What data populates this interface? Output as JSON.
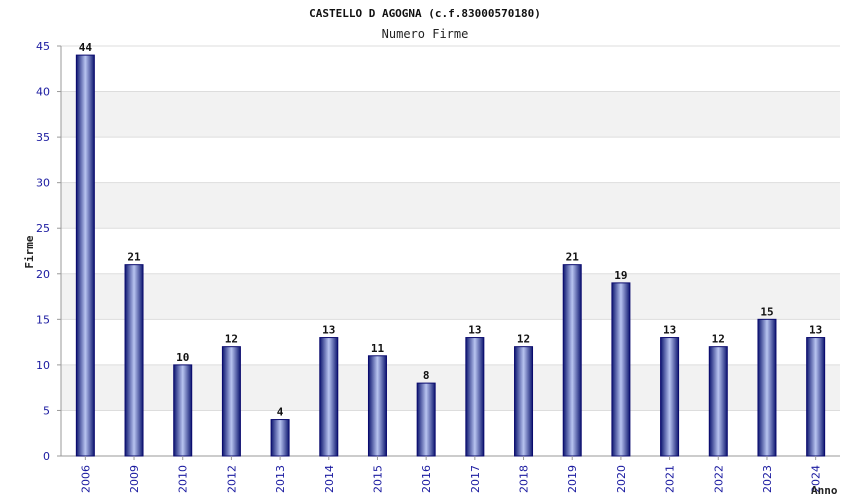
{
  "chart_data": {
    "type": "bar",
    "title": "CASTELLO D AGOGNA (c.f.83000570180)",
    "subtitle": "Numero Firme",
    "xlabel": "Anno",
    "ylabel": "Firme",
    "categories": [
      "2006",
      "2009",
      "2010",
      "2012",
      "2013",
      "2014",
      "2015",
      "2016",
      "2017",
      "2018",
      "2019",
      "2020",
      "2021",
      "2022",
      "2023",
      "2024"
    ],
    "values": [
      44,
      21,
      10,
      12,
      4,
      13,
      11,
      8,
      13,
      12,
      21,
      19,
      13,
      12,
      15,
      13
    ],
    "ylim": [
      0,
      45
    ],
    "yticks": [
      0,
      5,
      10,
      15,
      20,
      25,
      30,
      35,
      40,
      45
    ],
    "grid": true,
    "legend": "none",
    "colors": {
      "bar_edge": "#0a0a6e",
      "bar_dark": "#1c2a8a",
      "bar_light": "#b8c4f0",
      "band": "#f2f2f2",
      "tick": "#1a1aa0"
    }
  }
}
